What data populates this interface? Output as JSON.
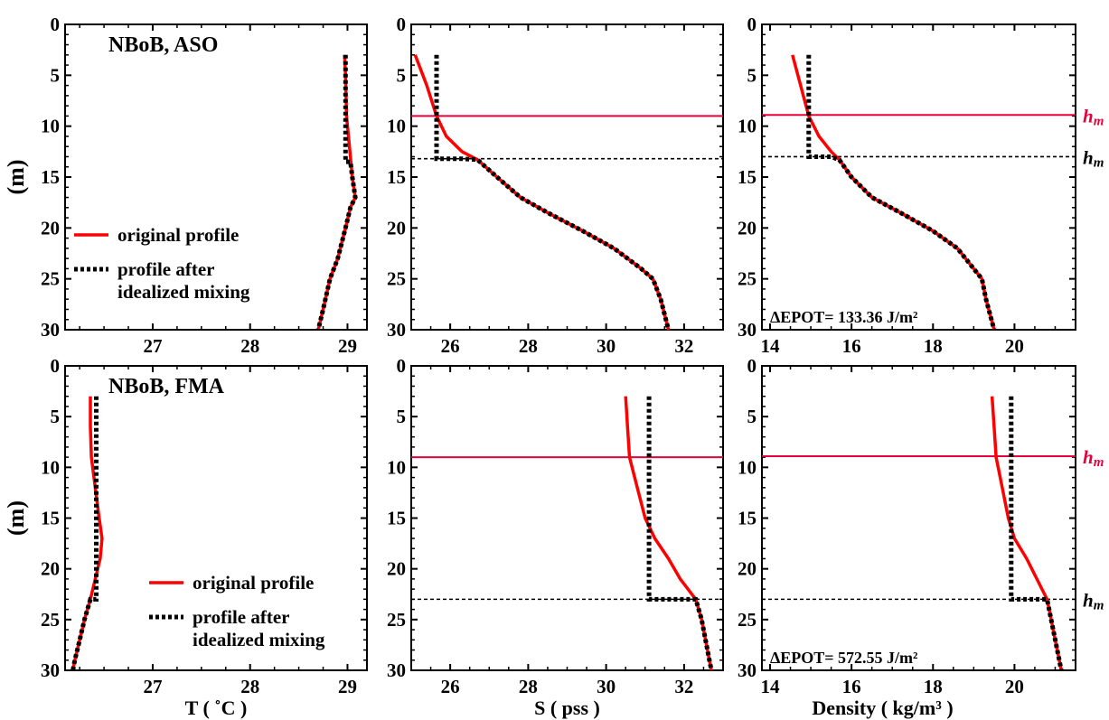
{
  "colors": {
    "original": "#ff0000",
    "mixed": "#000000",
    "hm_ml": "#e8003a",
    "hm_mixed": "#000000"
  },
  "legend": {
    "original": "original profile",
    "mixed_line1": "profile after",
    "mixed_line2": "idealized mixing"
  },
  "hm_label": "h",
  "hm_sub": "m",
  "ylabel": "(m)",
  "chart_data": [
    {
      "type": "line",
      "title": "NBoB, ASO",
      "xlabel": "",
      "ylabel": "(m)",
      "xlim": [
        26.1,
        29.2
      ],
      "ylim": [
        30,
        0
      ],
      "xticks": [
        "27",
        "28",
        "29"
      ],
      "yticks": [
        "0",
        "5",
        "10",
        "15",
        "20",
        "25",
        "30"
      ],
      "series": [
        {
          "name": "original profile",
          "points": [
            [
              28.97,
              3
            ],
            [
              28.98,
              5
            ],
            [
              28.99,
              9
            ],
            [
              29.0,
              10
            ],
            [
              29.03,
              13
            ],
            [
              29.05,
              15
            ],
            [
              29.08,
              17
            ],
            [
              29.03,
              18
            ],
            [
              28.98,
              20
            ],
            [
              28.9,
              23
            ],
            [
              28.82,
              25
            ],
            [
              28.75,
              28
            ],
            [
              28.7,
              30
            ]
          ]
        },
        {
          "name": "profile after idealized mixing",
          "points": [
            [
              28.98,
              3
            ],
            [
              28.98,
              13.5
            ],
            [
              29.03,
              13.5
            ],
            [
              29.05,
              15
            ],
            [
              29.08,
              17
            ],
            [
              29.03,
              18
            ],
            [
              28.98,
              20
            ],
            [
              28.9,
              23
            ],
            [
              28.82,
              25
            ],
            [
              28.75,
              28
            ],
            [
              28.7,
              30
            ]
          ]
        }
      ],
      "hlines": [],
      "legend": "middle-left"
    },
    {
      "type": "line",
      "title": "",
      "xlabel": "",
      "ylabel": "",
      "xlim": [
        25.0,
        33.0
      ],
      "ylim": [
        30,
        0
      ],
      "xticks": [
        "26",
        "28",
        "30",
        "32"
      ],
      "yticks": [
        "0",
        "5",
        "10",
        "15",
        "20",
        "25",
        "30"
      ],
      "series": [
        {
          "name": "original profile",
          "points": [
            [
              25.1,
              3
            ],
            [
              25.4,
              6
            ],
            [
              25.65,
              9
            ],
            [
              25.9,
              11
            ],
            [
              26.3,
              12.5
            ],
            [
              26.7,
              13.3
            ],
            [
              27.2,
              15
            ],
            [
              27.8,
              17
            ],
            [
              28.5,
              18.5
            ],
            [
              29.4,
              20.3
            ],
            [
              30.2,
              22
            ],
            [
              30.9,
              24
            ],
            [
              31.2,
              25
            ],
            [
              31.4,
              27
            ],
            [
              31.5,
              28.5
            ],
            [
              31.6,
              30
            ]
          ]
        },
        {
          "name": "profile after idealized mixing",
          "points": [
            [
              25.65,
              3
            ],
            [
              25.65,
              13.2
            ],
            [
              26.3,
              13.2
            ],
            [
              26.7,
              13.3
            ],
            [
              27.2,
              15
            ],
            [
              27.8,
              17
            ],
            [
              28.5,
              18.5
            ],
            [
              29.4,
              20.3
            ],
            [
              30.2,
              22
            ],
            [
              30.9,
              24
            ],
            [
              31.2,
              25
            ],
            [
              31.4,
              27
            ],
            [
              31.5,
              28.5
            ],
            [
              31.6,
              30
            ]
          ]
        }
      ],
      "hlines": [
        {
          "y": 9,
          "kind": "hm_ml"
        },
        {
          "y": 13.2,
          "kind": "hm_mixed"
        }
      ],
      "legend": "none"
    },
    {
      "type": "line",
      "title": "",
      "xlabel": "",
      "ylabel": "",
      "xlim": [
        13.8,
        21.5
      ],
      "ylim": [
        30,
        0
      ],
      "xticks": [
        "14",
        "16",
        "18",
        "20"
      ],
      "yticks": [
        "0",
        "5",
        "10",
        "15",
        "20",
        "25",
        "30"
      ],
      "annotation": "ΔEPOT= 133.36 J/m²",
      "series": [
        {
          "name": "original profile",
          "points": [
            [
              14.55,
              3
            ],
            [
              14.75,
              6
            ],
            [
              14.95,
              9
            ],
            [
              15.2,
              11
            ],
            [
              15.5,
              12.5
            ],
            [
              15.7,
              13.3
            ],
            [
              16.0,
              15
            ],
            [
              16.5,
              17
            ],
            [
              17.2,
              18.5
            ],
            [
              18.0,
              20.3
            ],
            [
              18.6,
              22
            ],
            [
              19.0,
              24
            ],
            [
              19.2,
              25
            ],
            [
              19.3,
              27
            ],
            [
              19.4,
              28.5
            ],
            [
              19.5,
              30
            ]
          ]
        },
        {
          "name": "profile after idealized mixing",
          "points": [
            [
              14.95,
              3
            ],
            [
              14.95,
              13
            ],
            [
              15.5,
              13
            ],
            [
              15.7,
              13.3
            ],
            [
              16.0,
              15
            ],
            [
              16.5,
              17
            ],
            [
              17.2,
              18.5
            ],
            [
              18.0,
              20.3
            ],
            [
              18.6,
              22
            ],
            [
              19.0,
              24
            ],
            [
              19.2,
              25
            ],
            [
              19.3,
              27
            ],
            [
              19.4,
              28.5
            ],
            [
              19.5,
              30
            ]
          ]
        }
      ],
      "hlines": [
        {
          "y": 8.9,
          "kind": "hm_ml"
        },
        {
          "y": 13,
          "kind": "hm_mixed"
        }
      ],
      "legend": "none"
    },
    {
      "type": "line",
      "title": "NBoB, FMA",
      "xlabel": "T ( ˚C )",
      "ylabel": "(m)",
      "xlim": [
        26.1,
        29.2
      ],
      "ylim": [
        30,
        0
      ],
      "xticks": [
        "27",
        "28",
        "29"
      ],
      "yticks": [
        "0",
        "5",
        "10",
        "15",
        "20",
        "25",
        "30"
      ],
      "series": [
        {
          "name": "original profile",
          "points": [
            [
              26.36,
              3
            ],
            [
              26.36,
              6
            ],
            [
              26.37,
              9
            ],
            [
              26.41,
              12
            ],
            [
              26.45,
              15
            ],
            [
              26.48,
              17
            ],
            [
              26.46,
              19
            ],
            [
              26.41,
              21
            ],
            [
              26.36,
              23
            ],
            [
              26.3,
              25
            ],
            [
              26.25,
              27
            ],
            [
              26.2,
              29
            ],
            [
              26.18,
              30
            ]
          ]
        },
        {
          "name": "profile after idealized mixing",
          "points": [
            [
              26.42,
              3
            ],
            [
              26.42,
              23
            ],
            [
              26.36,
              23
            ],
            [
              26.3,
              25
            ],
            [
              26.25,
              27
            ],
            [
              26.2,
              29
            ],
            [
              26.18,
              30
            ]
          ]
        }
      ],
      "hlines": [],
      "legend": "lower-middle"
    },
    {
      "type": "line",
      "title": "",
      "xlabel": "S ( pss )",
      "ylabel": "",
      "xlim": [
        25.0,
        33.0
      ],
      "ylim": [
        30,
        0
      ],
      "xticks": [
        "26",
        "28",
        "30",
        "32"
      ],
      "yticks": [
        "0",
        "5",
        "10",
        "15",
        "20",
        "25",
        "30"
      ],
      "series": [
        {
          "name": "original profile",
          "points": [
            [
              30.5,
              3
            ],
            [
              30.55,
              6
            ],
            [
              30.6,
              9
            ],
            [
              30.8,
              12
            ],
            [
              31.0,
              15
            ],
            [
              31.25,
              17
            ],
            [
              31.6,
              19
            ],
            [
              31.9,
              21
            ],
            [
              32.3,
              23
            ],
            [
              32.45,
              25
            ],
            [
              32.55,
              27
            ],
            [
              32.65,
              29
            ],
            [
              32.7,
              30
            ]
          ]
        },
        {
          "name": "profile after idealized mixing",
          "points": [
            [
              31.1,
              3
            ],
            [
              31.1,
              23
            ],
            [
              32.3,
              23
            ],
            [
              32.45,
              25
            ],
            [
              32.55,
              27
            ],
            [
              32.65,
              29
            ],
            [
              32.7,
              30
            ]
          ]
        }
      ],
      "hlines": [
        {
          "y": 9,
          "kind": "hm_ml"
        },
        {
          "y": 23,
          "kind": "hm_mixed"
        }
      ],
      "legend": "none"
    },
    {
      "type": "line",
      "title": "",
      "xlabel": "Density ( kg/m³ )",
      "ylabel": "",
      "xlim": [
        13.8,
        21.5
      ],
      "ylim": [
        30,
        0
      ],
      "xticks": [
        "14",
        "16",
        "18",
        "20"
      ],
      "yticks": [
        "0",
        "5",
        "10",
        "15",
        "20",
        "25",
        "30"
      ],
      "annotation": "ΔEPOT= 572.55 J/m²",
      "series": [
        {
          "name": "original profile",
          "points": [
            [
              19.45,
              3
            ],
            [
              19.5,
              6
            ],
            [
              19.55,
              9
            ],
            [
              19.7,
              12
            ],
            [
              19.85,
              15
            ],
            [
              20.0,
              17
            ],
            [
              20.3,
              19
            ],
            [
              20.55,
              21
            ],
            [
              20.8,
              23
            ],
            [
              20.9,
              25
            ],
            [
              21.0,
              27
            ],
            [
              21.1,
              29
            ],
            [
              21.15,
              30
            ]
          ]
        },
        {
          "name": "profile after idealized mixing",
          "points": [
            [
              19.92,
              3
            ],
            [
              19.92,
              23
            ],
            [
              20.8,
              23
            ],
            [
              20.9,
              25
            ],
            [
              21.0,
              27
            ],
            [
              21.1,
              29
            ],
            [
              21.15,
              30
            ]
          ]
        }
      ],
      "hlines": [
        {
          "y": 8.9,
          "kind": "hm_ml"
        },
        {
          "y": 23,
          "kind": "hm_mixed"
        }
      ],
      "legend": "none"
    }
  ]
}
